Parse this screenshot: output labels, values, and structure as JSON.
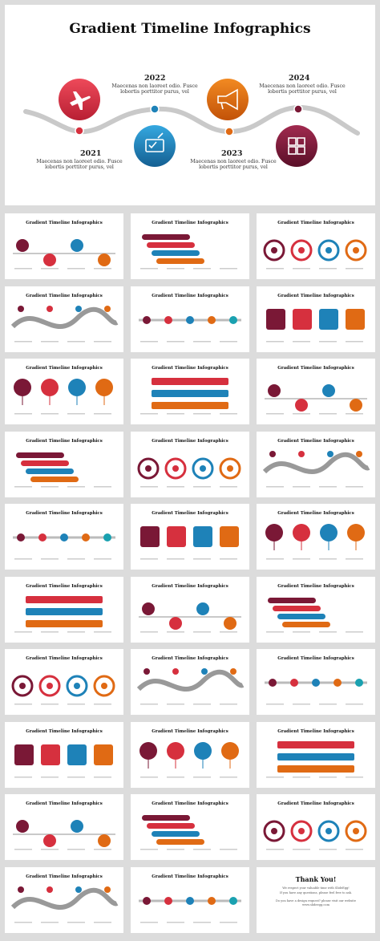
{
  "hero": {
    "title": "Gradient Timeline Infographics",
    "milestones": [
      {
        "year": "2021",
        "caption": "Maecenas non laoreet odio. Fusce lobortis porttitor purus, vel",
        "icon": "airplane-icon",
        "color": "#d6303e"
      },
      {
        "year": "2022",
        "caption": "Maecenas non laoreet odio. Fusce lobortis porttitor purus, vel",
        "icon": "check-icon",
        "color": "#1e82b8"
      },
      {
        "year": "2023",
        "caption": "Maecenas non laoreet odio. Fusce lobortis porttitor purus, vel",
        "icon": "megaphone-icon",
        "color": "#e06a14"
      },
      {
        "year": "2024",
        "caption": "Maecenas non laoreet odio. Fusce lobortis porttitor purus, vel",
        "icon": "puzzle-icon",
        "color": "#7a1836"
      }
    ]
  },
  "thumb_title": "Gradient Timeline Infographics",
  "thank_you": {
    "title": "Thank You!",
    "line1": "We respect your valuable time with SlideEgg!",
    "line2": "If you have any questions, please feel free to ask.",
    "line3": "Do you have a design request? please visit our website www.slideegg.com"
  },
  "colors": {
    "maroon": "#7a1836",
    "red": "#d6303e",
    "blue": "#1e82b8",
    "teal": "#1aa1b0",
    "orange": "#e06a14",
    "gray": "#b8b8b8"
  },
  "thumbnails_count": 29
}
